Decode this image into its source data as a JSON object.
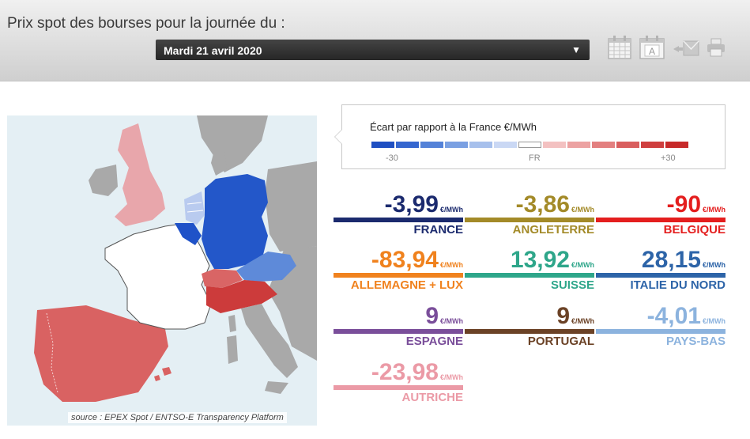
{
  "header": {
    "title": "Prix spot des bourses pour la journée du :",
    "date_selected": "Mardi 21 avril 2020"
  },
  "toolbar": {
    "icons": [
      "calendar-grid-icon",
      "calendar-icon",
      "send-mail-icon",
      "print-icon"
    ],
    "calendar_letter": "A"
  },
  "map": {
    "source": "source : EPEX Spot / ENTSO-E Transparency Platform"
  },
  "legend": {
    "title": "Écart par rapport à la France €/MWh",
    "tick_min": "-30",
    "tick_mid": "FR",
    "tick_max": "+30",
    "colors": [
      "#1f4fc2",
      "#3566cf",
      "#5482d8",
      "#7aa0e2",
      "#a7c0ec",
      "#cad8f4",
      "#ffffff",
      "#f3c1c1",
      "#eca2a2",
      "#e37f7f",
      "#d95e5e",
      "#cf3f3f",
      "#c72a2a"
    ]
  },
  "prices": [
    {
      "value": "-3,99",
      "unit": "€/MWh",
      "country": "FRANCE",
      "color": "#1b2a6e"
    },
    {
      "value": "-3,86",
      "unit": "€/MWh",
      "country": "ANGLETERRE",
      "color": "#a38a28"
    },
    {
      "value": "-90",
      "unit": "€/MWh",
      "country": "BELGIQUE",
      "color": "#e41e1e"
    },
    {
      "value": "-83,94",
      "unit": "€/MWh",
      "country": "ALLEMAGNE + LUX",
      "color": "#f0821e"
    },
    {
      "value": "13,92",
      "unit": "€/MWh",
      "country": "SUISSE",
      "color": "#2ea68a"
    },
    {
      "value": "28,15",
      "unit": "€/MWh",
      "country": "ITALIE DU NORD",
      "color": "#2d64a8"
    },
    {
      "value": "9",
      "unit": "€/MWh",
      "country": "ESPAGNE",
      "color": "#7a4e9a"
    },
    {
      "value": "9",
      "unit": "€/MWh",
      "country": "PORTUGAL",
      "color": "#6b4226"
    },
    {
      "value": "-4,01",
      "unit": "€/MWh",
      "country": "PAYS-BAS",
      "color": "#8cb3de"
    },
    {
      "value": "-23,98",
      "unit": "€/MWh",
      "country": "AUTRICHE",
      "color": "#eb9aa6"
    }
  ],
  "map_colors": {
    "france": "#ffffff",
    "uk": "#e8a6ab",
    "belgium": "#1f52c8",
    "netherlands": "#b9cbef",
    "germany": "#2357c9",
    "switzerland": "#d96565",
    "italy": "#cc3b3b",
    "austria": "#5e8ad9",
    "iberia": "#d96262",
    "neutral_land": "#a9a9a9",
    "sea": "#e4eff4"
  }
}
